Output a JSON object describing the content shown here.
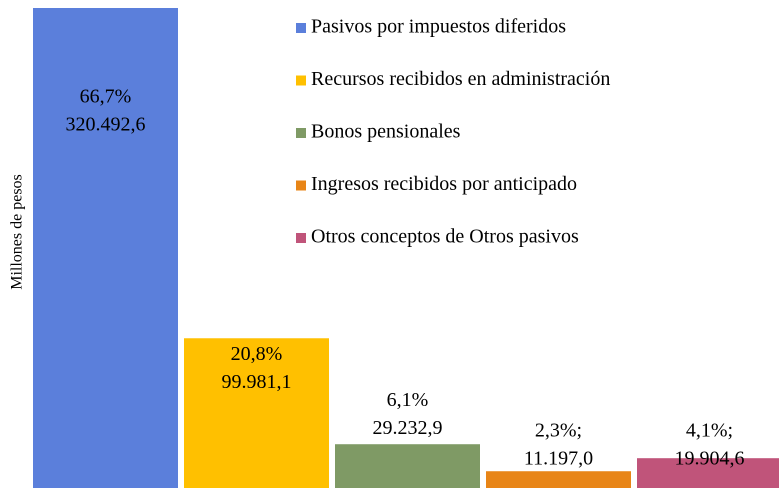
{
  "chart_data": {
    "type": "bar",
    "y_label": "Millones de pesos",
    "categories": [
      "Pasivos por impuestos diferidos",
      "Recursos recibidos en administración",
      "Bonos pensionales",
      "Ingresos recibidos por anticipado",
      "Otros conceptos de Otros pasivos"
    ],
    "values": [
      320492.6,
      99981.1,
      29232.9,
      11197.0,
      19904.6
    ],
    "value_labels": [
      "320.492,6",
      "99.981,1",
      "29.232,9",
      "11.197,0",
      "19.904,6"
    ],
    "percents": [
      66.7,
      20.8,
      6.1,
      2.3,
      4.1
    ],
    "percent_labels": [
      "66,7%",
      "20,8%",
      "6,1%",
      "2,3%;",
      "4,1%;"
    ],
    "colors": [
      "#5b7fdb",
      "#ffc000",
      "#7f9a65",
      "#e88517",
      "#c0547a"
    ],
    "ylim": [
      0,
      320492.6
    ],
    "legend": "top-right"
  }
}
